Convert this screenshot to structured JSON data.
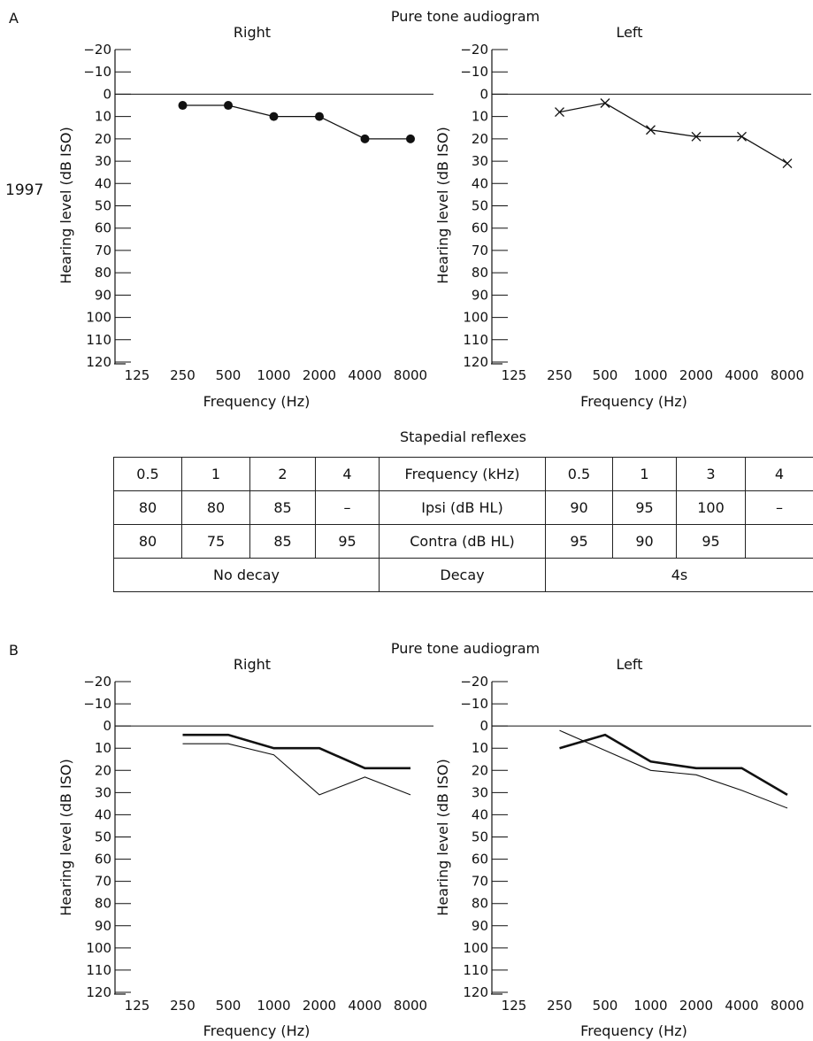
{
  "panel_labels": {
    "a": "A",
    "b": "B"
  },
  "year_label": "1997",
  "chart_data": [
    {
      "type": "line",
      "title": "Pure tone audiogram",
      "subtitle": "Right",
      "xlabel": "Frequency (Hz)",
      "ylabel": "Hearing level (dB ISO)",
      "x_categories": [
        "125",
        "250",
        "500",
        "1000",
        "2000",
        "4000",
        "8000"
      ],
      "y_ticks": [
        "−20",
        "−10",
        "0",
        "10",
        "20",
        "30",
        "40",
        "50",
        "60",
        "70",
        "80",
        "90",
        "100",
        "110",
        "120"
      ],
      "ylim": [
        -20,
        120
      ],
      "y_inverted": true,
      "series": [
        {
          "marker": "dot",
          "style": "normal",
          "x": [
            "250",
            "500",
            "1000",
            "2000",
            "4000",
            "8000"
          ],
          "values": [
            5,
            5,
            10,
            10,
            20,
            20
          ]
        }
      ]
    },
    {
      "type": "line",
      "subtitle": "Left",
      "xlabel": "Frequency (Hz)",
      "ylabel": "Hearing level (dB ISO)",
      "x_categories": [
        "125",
        "250",
        "500",
        "1000",
        "2000",
        "4000",
        "8000"
      ],
      "y_ticks": [
        "−20",
        "−10",
        "0",
        "10",
        "20",
        "30",
        "40",
        "50",
        "60",
        "70",
        "80",
        "90",
        "100",
        "110",
        "120"
      ],
      "ylim": [
        -20,
        120
      ],
      "y_inverted": true,
      "series": [
        {
          "marker": "cross",
          "style": "normal",
          "x": [
            "250",
            "500",
            "1000",
            "2000",
            "4000",
            "8000"
          ],
          "values": [
            8,
            4,
            16,
            19,
            19,
            31
          ]
        }
      ]
    },
    {
      "type": "line",
      "title": "Pure tone audiogram",
      "subtitle": "Right",
      "xlabel": "Frequency (Hz)",
      "ylabel": "Hearing level (dB ISO)",
      "x_categories": [
        "125",
        "250",
        "500",
        "1000",
        "2000",
        "4000",
        "8000"
      ],
      "y_ticks": [
        "−20",
        "−10",
        "0",
        "10",
        "20",
        "30",
        "40",
        "50",
        "60",
        "70",
        "80",
        "90",
        "100",
        "110",
        "120"
      ],
      "ylim": [
        -20,
        120
      ],
      "y_inverted": true,
      "series": [
        {
          "marker": "none",
          "style": "bold",
          "x": [
            "250",
            "500",
            "1000",
            "2000",
            "4000",
            "8000"
          ],
          "values": [
            4,
            4,
            10,
            10,
            19,
            19
          ]
        },
        {
          "marker": "none",
          "style": "thin",
          "x": [
            "250",
            "500",
            "1000",
            "2000",
            "4000",
            "8000"
          ],
          "values": [
            8,
            8,
            13,
            31,
            23,
            31
          ]
        }
      ]
    },
    {
      "type": "line",
      "subtitle": "Left",
      "xlabel": "Frequency (Hz)",
      "ylabel": "Hearing level (dB ISO)",
      "x_categories": [
        "125",
        "250",
        "500",
        "1000",
        "2000",
        "4000",
        "8000"
      ],
      "y_ticks": [
        "−20",
        "−10",
        "0",
        "10",
        "20",
        "30",
        "40",
        "50",
        "60",
        "70",
        "80",
        "90",
        "100",
        "110",
        "120"
      ],
      "ylim": [
        -20,
        120
      ],
      "y_inverted": true,
      "series": [
        {
          "marker": "none",
          "style": "bold",
          "x": [
            "250",
            "500",
            "1000",
            "2000",
            "4000",
            "8000"
          ],
          "values": [
            10,
            4,
            16,
            19,
            19,
            31
          ]
        },
        {
          "marker": "none",
          "style": "thin",
          "x": [
            "250",
            "500",
            "1000",
            "2000",
            "4000",
            "8000"
          ],
          "values": [
            2,
            11,
            20,
            22,
            29,
            37
          ]
        }
      ]
    }
  ],
  "reflexes": {
    "title": "Stapedial reflexes",
    "rows": [
      [
        "0.5",
        "1",
        "2",
        "4",
        "Frequency (kHz)",
        "0.5",
        "1",
        "3",
        "4"
      ],
      [
        "80",
        "80",
        "85",
        "–",
        "Ipsi (dB HL)",
        "90",
        "95",
        "100",
        "–"
      ],
      [
        "80",
        "75",
        "85",
        "95",
        "Contra (dB HL)",
        "95",
        "90",
        "95",
        ""
      ]
    ],
    "footer": [
      "No decay",
      "Decay",
      "4s"
    ]
  }
}
